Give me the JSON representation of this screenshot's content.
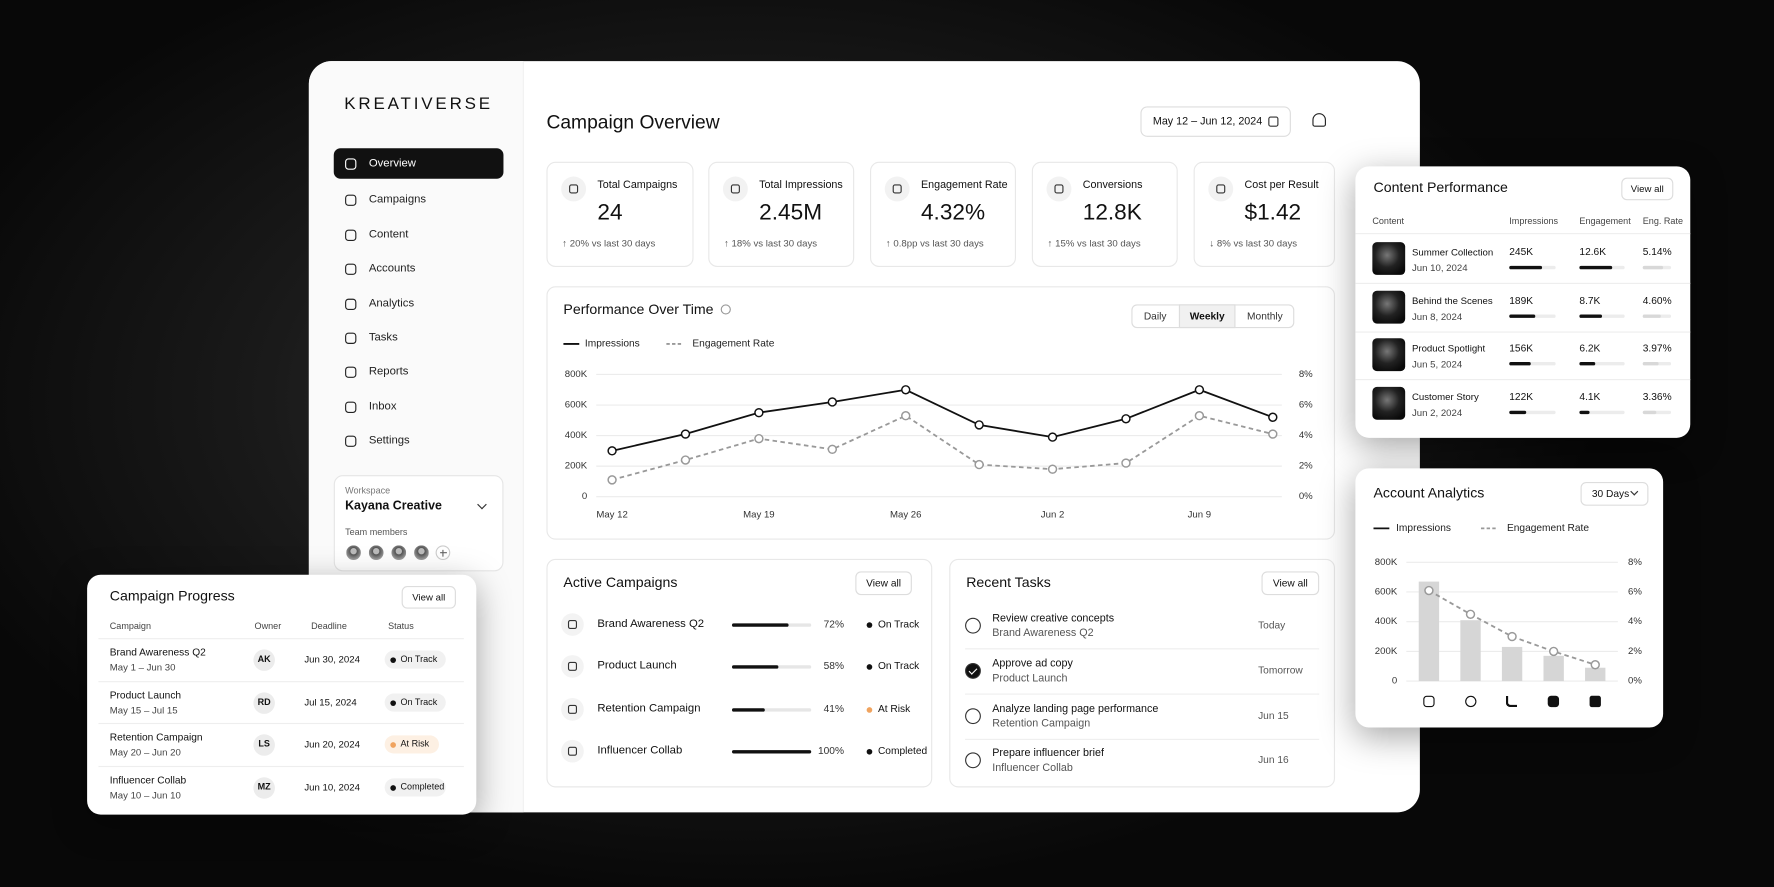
{
  "brand": "KREATIVERSE",
  "nav": [
    {
      "label": "Overview",
      "active": true
    },
    {
      "label": "Campaigns"
    },
    {
      "label": "Content"
    },
    {
      "label": "Accounts"
    },
    {
      "label": "Analytics"
    },
    {
      "label": "Tasks"
    },
    {
      "label": "Reports"
    },
    {
      "label": "Inbox"
    },
    {
      "label": "Settings"
    }
  ],
  "workspace": {
    "label": "Workspace",
    "name": "Kayana Creative",
    "team_label": "Team members"
  },
  "header": {
    "title": "Campaign Overview",
    "date_range": "May 12 – Jun 12, 2024"
  },
  "kpis": [
    {
      "label": "Total Campaigns",
      "value": "24",
      "change": "↑ 20% vs last 30 days"
    },
    {
      "label": "Total Impressions",
      "value": "2.45M",
      "change": "↑ 18% vs last 30 days"
    },
    {
      "label": "Engagement Rate",
      "value": "4.32%",
      "change": "↑ 0.8pp vs last 30 days"
    },
    {
      "label": "Conversions",
      "value": "12.8K",
      "change": "↑ 15% vs last 30 days"
    },
    {
      "label": "Cost per Result",
      "value": "$1.42",
      "change": "↓ 8% vs last 30 days"
    }
  ],
  "chart_data": [
    {
      "type": "line",
      "title": "Performance Over Time",
      "toggles": [
        "Daily",
        "Weekly",
        "Monthly"
      ],
      "selected_toggle": 1,
      "categories": [
        "May 12",
        null,
        "May 19",
        null,
        "May 26",
        null,
        "Jun 2",
        null,
        "Jun 9",
        null
      ],
      "series": [
        {
          "name": "Impressions",
          "color": "#111111",
          "dash": false,
          "values": [
            300000,
            410000,
            550000,
            620000,
            700000,
            470000,
            390000,
            510000,
            700000,
            520000
          ]
        },
        {
          "name": "Engagement Rate",
          "color": "#999999",
          "dash": true,
          "axis": "y2",
          "values": [
            1.1,
            2.4,
            3.8,
            3.1,
            5.3,
            2.1,
            1.8,
            2.2,
            5.3,
            4.1
          ]
        }
      ],
      "ylim": [
        0,
        800000
      ],
      "yticks": [
        0,
        {
          "value": 200000,
          "label": "200K"
        },
        {
          "value": 400000,
          "label": "400K"
        },
        {
          "value": 600000,
          "label": "600K"
        },
        {
          "value": 800000,
          "label": "800K"
        }
      ],
      "y2lim": [
        0,
        8
      ],
      "y2ticks": [
        {
          "value": 0,
          "label": "0%"
        },
        {
          "value": 2,
          "label": "2%"
        },
        {
          "value": 4,
          "label": "4%"
        },
        {
          "value": 6,
          "label": "6%"
        },
        {
          "value": 8,
          "label": "8%"
        }
      ],
      "grid": true
    },
    {
      "type": "bar",
      "title": "Account Analytics",
      "range": "30 Days",
      "categories": [
        null,
        null,
        null,
        null,
        null
      ],
      "series": [
        {
          "name": "Impressions",
          "color": "#d6d6d6",
          "legend_color": "#111111",
          "dash": false,
          "values": [
            670000,
            410000,
            230000,
            170000,
            90000
          ]
        },
        {
          "name": "Engagement Rate",
          "type": "line",
          "color": "#999999",
          "dash": true,
          "axis": "y2",
          "values": [
            6.1,
            4.5,
            3.0,
            2.0,
            1.1
          ]
        }
      ],
      "ylim": [
        0,
        800000
      ],
      "yticks": [
        0,
        {
          "value": 200000,
          "label": "200K"
        },
        {
          "value": 400000,
          "label": "400K"
        },
        {
          "value": 600000,
          "label": "600K"
        },
        {
          "value": 800000,
          "label": "800K"
        }
      ],
      "y2lim": [
        0,
        8
      ],
      "y2ticks": [
        {
          "value": 0,
          "label": "0%"
        },
        {
          "value": 2,
          "label": "2%"
        },
        {
          "value": 4,
          "label": "4%"
        },
        {
          "value": 6,
          "label": "6%"
        },
        {
          "value": 8,
          "label": "8%"
        }
      ],
      "grid": true
    }
  ],
  "active_campaigns": {
    "title": "Active Campaigns",
    "view_all": "View all",
    "items": [
      {
        "name": "Brand Awareness Q2",
        "progress": 72,
        "progress_label": "72%",
        "status": "On Track",
        "status_color": "#111111"
      },
      {
        "name": "Product Launch",
        "progress": 58,
        "progress_label": "58%",
        "status": "On Track",
        "status_color": "#111111"
      },
      {
        "name": "Retention Campaign",
        "progress": 41,
        "progress_label": "41%",
        "status": "At Risk",
        "status_color": "#f0a35e"
      },
      {
        "name": "Influencer Collab",
        "progress": 100,
        "progress_label": "100%",
        "status": "Completed",
        "status_color": "#111111"
      }
    ]
  },
  "recent_tasks": {
    "title": "Recent Tasks",
    "view_all": "View all",
    "items": [
      {
        "task": "Review creative concepts",
        "campaign": "Brand Awareness Q2",
        "due": "Today",
        "done": false
      },
      {
        "task": "Approve ad copy",
        "campaign": "Product Launch",
        "due": "Tomorrow",
        "done": true
      },
      {
        "task": "Analyze landing page performance",
        "campaign": "Retention Campaign",
        "due": "Jun 15",
        "done": false
      },
      {
        "task": "Prepare influencer brief",
        "campaign": "Influencer Collab",
        "due": "Jun 16",
        "done": false
      }
    ]
  },
  "content_performance": {
    "title": "Content Performance",
    "view_all": "View all",
    "columns": [
      "Content",
      "Impressions",
      "Engagement",
      "Eng. Rate"
    ],
    "rows": [
      {
        "name": "Summer Collection",
        "date": "Jun 10, 2024",
        "impressions": {
          "value": 245000,
          "label": "245K"
        },
        "engagement": {
          "value": 12600,
          "label": "12.6K"
        },
        "eng_rate": {
          "value": 5.14,
          "label": "5.14%"
        }
      },
      {
        "name": "Behind the Scenes",
        "date": "Jun 8, 2024",
        "impressions": {
          "value": 189000,
          "label": "189K"
        },
        "engagement": {
          "value": 8700,
          "label": "8.7K"
        },
        "eng_rate": {
          "value": 4.6,
          "label": "4.60%"
        }
      },
      {
        "name": "Product Spotlight",
        "date": "Jun 5, 2024",
        "impressions": {
          "value": 156000,
          "label": "156K"
        },
        "engagement": {
          "value": 6200,
          "label": "6.2K"
        },
        "eng_rate": {
          "value": 3.97,
          "label": "3.97%"
        }
      },
      {
        "name": "Customer Story",
        "date": "Jun 2, 2024",
        "impressions": {
          "value": 122000,
          "label": "122K"
        },
        "engagement": {
          "value": 4100,
          "label": "4.1K"
        },
        "eng_rate": {
          "value": 3.36,
          "label": "3.36%"
        }
      }
    ]
  },
  "campaign_progress": {
    "title": "Campaign Progress",
    "view_all": "View all",
    "columns": [
      "Campaign",
      "Owner",
      "Deadline",
      "Status"
    ],
    "rows": [
      {
        "name": "Brand Awareness Q2",
        "dates": "May 1 – Jun 30",
        "owner": "AK",
        "deadline": "Jun 30, 2024",
        "status": "On Track",
        "status_color": "#111111"
      },
      {
        "name": "Product Launch",
        "dates": "May 15 – Jul 15",
        "owner": "RD",
        "deadline": "Jul 15, 2024",
        "status": "On Track",
        "status_color": "#111111"
      },
      {
        "name": "Retention Campaign",
        "dates": "May 20 – Jun 20",
        "owner": "LS",
        "deadline": "Jun 20, 2024",
        "status": "At Risk",
        "status_color": "#f0a35e"
      },
      {
        "name": "Influencer Collab",
        "dates": "May 10 – Jun 10",
        "owner": "MZ",
        "deadline": "Jun 10, 2024",
        "status": "Completed",
        "status_color": "#111111"
      }
    ]
  }
}
